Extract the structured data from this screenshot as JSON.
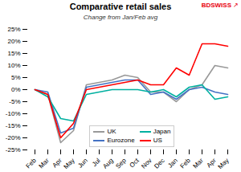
{
  "chart_data": {
    "type": "line",
    "title": "Comparative retail sales",
    "subtitle": "Change from Jan/Feb avg",
    "categories": [
      "Feb",
      "Mar",
      "Apr",
      "May",
      "Jun",
      "Jul",
      "Aug",
      "Sep",
      "Oct",
      "Nov",
      "Dec",
      "Jan",
      "Feb",
      "Mar",
      "Apr",
      "May"
    ],
    "series": [
      {
        "name": "UK",
        "color": "#999999",
        "values": [
          0,
          -2,
          -22,
          -17,
          2,
          3,
          4,
          6,
          5,
          -1,
          -1,
          -5,
          0,
          2,
          10,
          9
        ]
      },
      {
        "name": "Eurozone",
        "color": "#4472C4",
        "values": [
          0,
          -1,
          -18,
          -16,
          1,
          2,
          3,
          4,
          4,
          -2,
          -1,
          -4,
          0,
          1,
          -1,
          -2
        ]
      },
      {
        "name": "Japan",
        "color": "#00B0A0",
        "values": [
          0,
          -3,
          -12,
          -13,
          -2,
          -1,
          0,
          0,
          0,
          -1,
          0,
          -3,
          1,
          2,
          -4,
          -3
        ]
      },
      {
        "name": "US",
        "color": "#FF0000",
        "values": [
          0,
          -2,
          -20,
          -14,
          0,
          1,
          2,
          3,
          4,
          2,
          2,
          9,
          6,
          19,
          19,
          18
        ]
      }
    ],
    "ylim": [
      -25,
      25
    ],
    "yticks": [
      {
        "value": -25,
        "label": "-25%"
      },
      {
        "value": -20,
        "label": "-20%"
      },
      {
        "value": -15,
        "label": "-15%"
      },
      {
        "value": -10,
        "label": "-10%"
      },
      {
        "value": -5,
        "label": "-5%"
      },
      {
        "value": 0,
        "label": "0%"
      },
      {
        "value": 5,
        "label": "5%"
      },
      {
        "value": 10,
        "label": "10%"
      },
      {
        "value": 15,
        "label": "15%"
      },
      {
        "value": 20,
        "label": "20%"
      },
      {
        "value": 25,
        "label": "25%"
      }
    ],
    "grid": false,
    "legend": "lower left",
    "annotations": [
      {
        "text": "BDSWISS",
        "color": "#E8000D"
      },
      {
        "text": "↗",
        "color": "#E8000D"
      }
    ]
  }
}
